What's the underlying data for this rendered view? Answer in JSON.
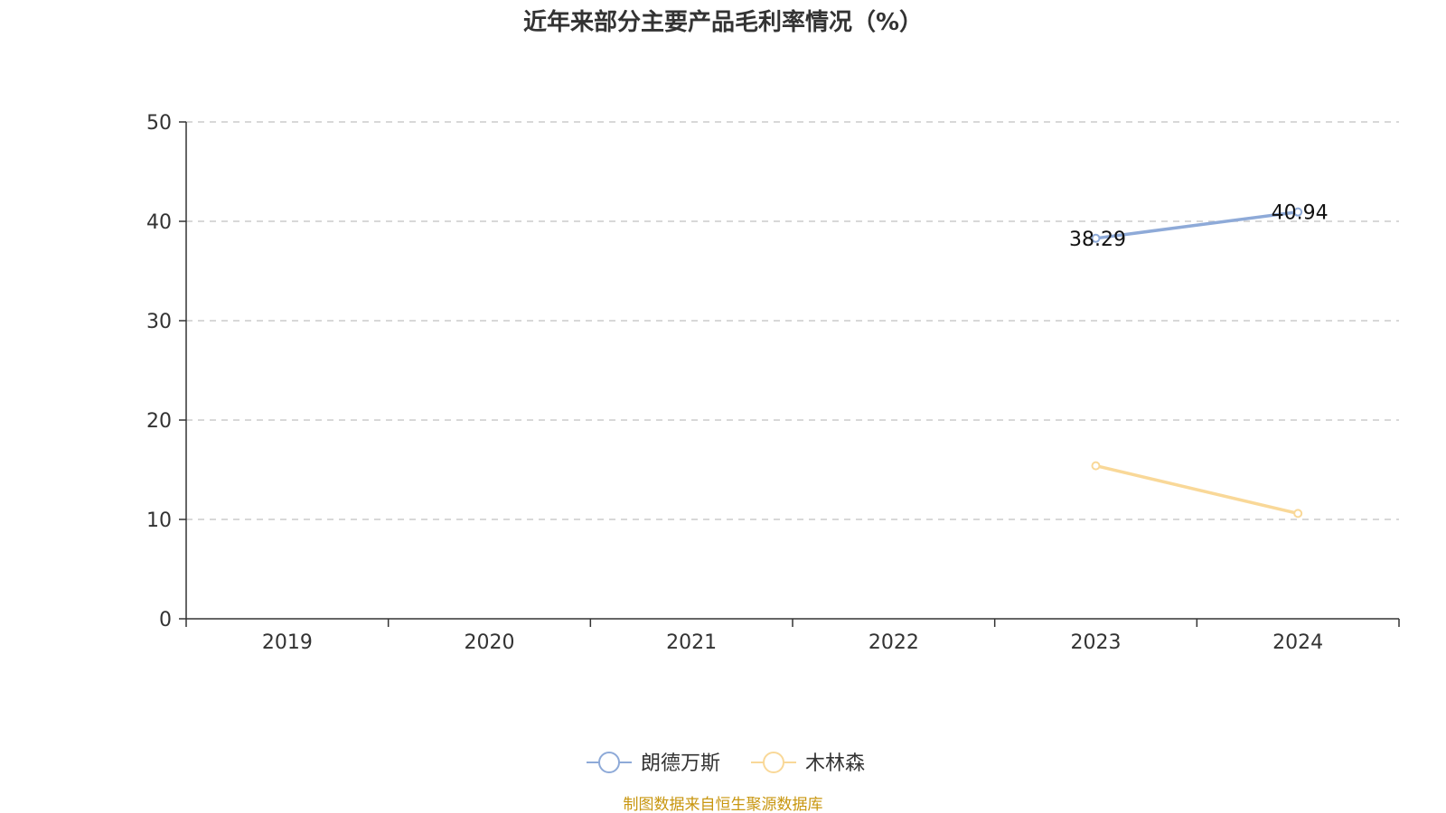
{
  "colors": {
    "axis": "#333333",
    "grid": "#cccccc",
    "source": "#c8960f"
  },
  "chart_data": {
    "type": "line",
    "title": "近年来部分主要产品毛利率情况（%）",
    "xlabel": "",
    "ylabel": "",
    "categories": [
      "2019",
      "2020",
      "2021",
      "2022",
      "2023",
      "2024"
    ],
    "ylim": [
      0,
      50
    ],
    "yticks": [
      0,
      10,
      20,
      30,
      40,
      50
    ],
    "grid": true,
    "legend_position": "bottom",
    "series": [
      {
        "name": "朗德万斯",
        "color": "#8eaad8",
        "values": [
          null,
          null,
          null,
          null,
          38.29,
          40.94
        ],
        "data_labels": [
          "",
          "",
          "",
          "",
          "38.29",
          "40.94"
        ]
      },
      {
        "name": "木林森",
        "color": "#f9d898",
        "values": [
          null,
          null,
          null,
          null,
          15.4,
          10.6
        ],
        "data_labels": [
          "",
          "",
          "",
          "",
          "",
          ""
        ]
      }
    ]
  },
  "source_text": "制图数据来自恒生聚源数据库"
}
